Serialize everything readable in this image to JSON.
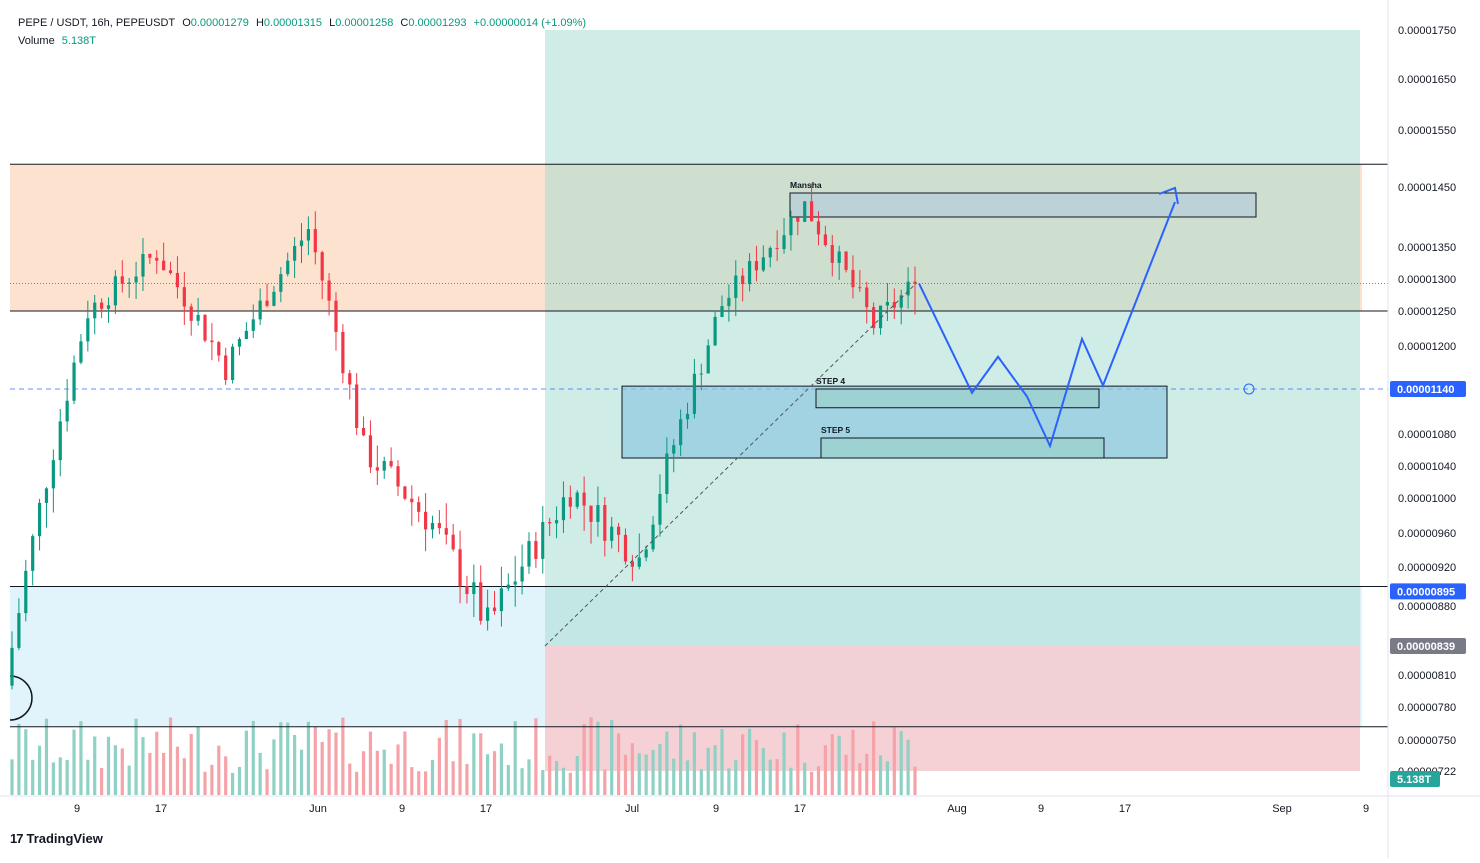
{
  "header": {
    "symbol": "PEPE / USDT, 16h, PEPEUSDT",
    "o_label": "O",
    "o_value": "0.00001279",
    "h_label": "H",
    "h_value": "0.00001315",
    "l_label": "L",
    "l_value": "0.00001258",
    "c_label": "C",
    "c_value": "0.00001293",
    "change": "+0.00000014 (+1.09%)",
    "volume_label": "Volume",
    "volume_value": "5.138T"
  },
  "branding": {
    "logo_mark": "17",
    "logo_text": "TradingView"
  },
  "colors": {
    "up": "#089981",
    "down": "#f23645",
    "up_volume": "#8fd1c4",
    "down_volume": "#f5a3a9",
    "target_zone": "#a8dcd2",
    "stop_zone": "#f3c9cf",
    "resistance_zone": "#fde2cf",
    "support_zone": "#e2f4fb",
    "projection": "#2962ff",
    "price_label": "#2962ff"
  },
  "chart_data": {
    "type": "candlestick",
    "timeframe": "16h",
    "y_axis": {
      "ticks": [
        "0.00001750",
        "0.00001650",
        "0.00001550",
        "0.00001450",
        "0.00001350",
        "0.00001300",
        "0.00001250",
        "0.00001200",
        "0.00001080",
        "0.00001040",
        "0.00001000",
        "0.00000960",
        "0.00000920",
        "0.00000880",
        "0.00000810",
        "0.00000780",
        "0.00000750",
        "0.00000722"
      ]
    },
    "x_axis": {
      "ticks": [
        "9",
        "17",
        "Jun",
        "9",
        "17",
        "Jul",
        "9",
        "17",
        "Aug",
        "9",
        "17",
        "Sep",
        "9"
      ]
    },
    "price_labels": [
      {
        "value": "0.00001140",
        "role": "current/alert line"
      },
      {
        "value": "0.00000895",
        "role": "level"
      },
      {
        "value": "0.00000839",
        "role": "stop level"
      }
    ],
    "volume_label": "5.138T",
    "horizontal_levels": [
      1.49e-05,
      1.25e-05,
      9e-06,
      7.62e-06
    ],
    "dotted_last_price": 1.293e-05,
    "zones": [
      {
        "name": "resistance-zone",
        "from": 1.25e-05,
        "to": 1.49e-05
      },
      {
        "name": "support-zone",
        "from": 7.62e-06,
        "to": 9e-06
      },
      {
        "name": "target-zone",
        "from": 8.39e-06,
        "to": 1.75e-05,
        "start": "Jun 21"
      },
      {
        "name": "stop-zone",
        "from": 7.22e-06,
        "to": 8.39e-06,
        "start": "Jun 21"
      }
    ],
    "boxes": [
      {
        "label": "Mansha",
        "from": 1.4e-05,
        "to": 1.44e-05
      },
      {
        "label": "",
        "from": 1.05e-05,
        "to": 1.144e-05
      },
      {
        "label": "STEP 4",
        "from": 1.115e-05,
        "to": 1.14e-05
      },
      {
        "label": "STEP 5",
        "from": 1.05e-05,
        "to": 1.075e-05
      }
    ],
    "projection_path": [
      1.293e-05,
      1.135e-05,
      1.185e-05,
      1.13e-05,
      1.065e-05,
      1.21e-05,
      1.145e-05,
      1.425e-05
    ],
    "segments": [
      {
        "from": 8e-06,
        "to": 1.25e-05
      },
      {
        "from": 1.25e-05,
        "to": 1.34e-05
      },
      {
        "from": 1.34e-05,
        "to": 1.17e-05
      },
      {
        "from": 1.17e-05,
        "to": 1.38e-05
      },
      {
        "from": 1.38e-05,
        "to": 1.06e-05
      },
      {
        "from": 1.06e-05,
        "to": 9.7e-06
      },
      {
        "from": 9.7e-06,
        "to": 8.6e-06
      },
      {
        "from": 8.6e-06,
        "to": 1.01e-05
      },
      {
        "from": 1.01e-05,
        "to": 9.3e-06
      },
      {
        "from": 9.3e-06,
        "to": 1.26e-05
      },
      {
        "from": 1.26e-05,
        "to": 1.42e-05
      },
      {
        "from": 1.42e-05,
        "to": 1.23e-05
      },
      {
        "from": 1.23e-05,
        "to": 1.293e-05
      }
    ],
    "segment_lengths": [
      12,
      10,
      10,
      12,
      8,
      10,
      8,
      12,
      10,
      12,
      12,
      10,
      6
    ]
  }
}
